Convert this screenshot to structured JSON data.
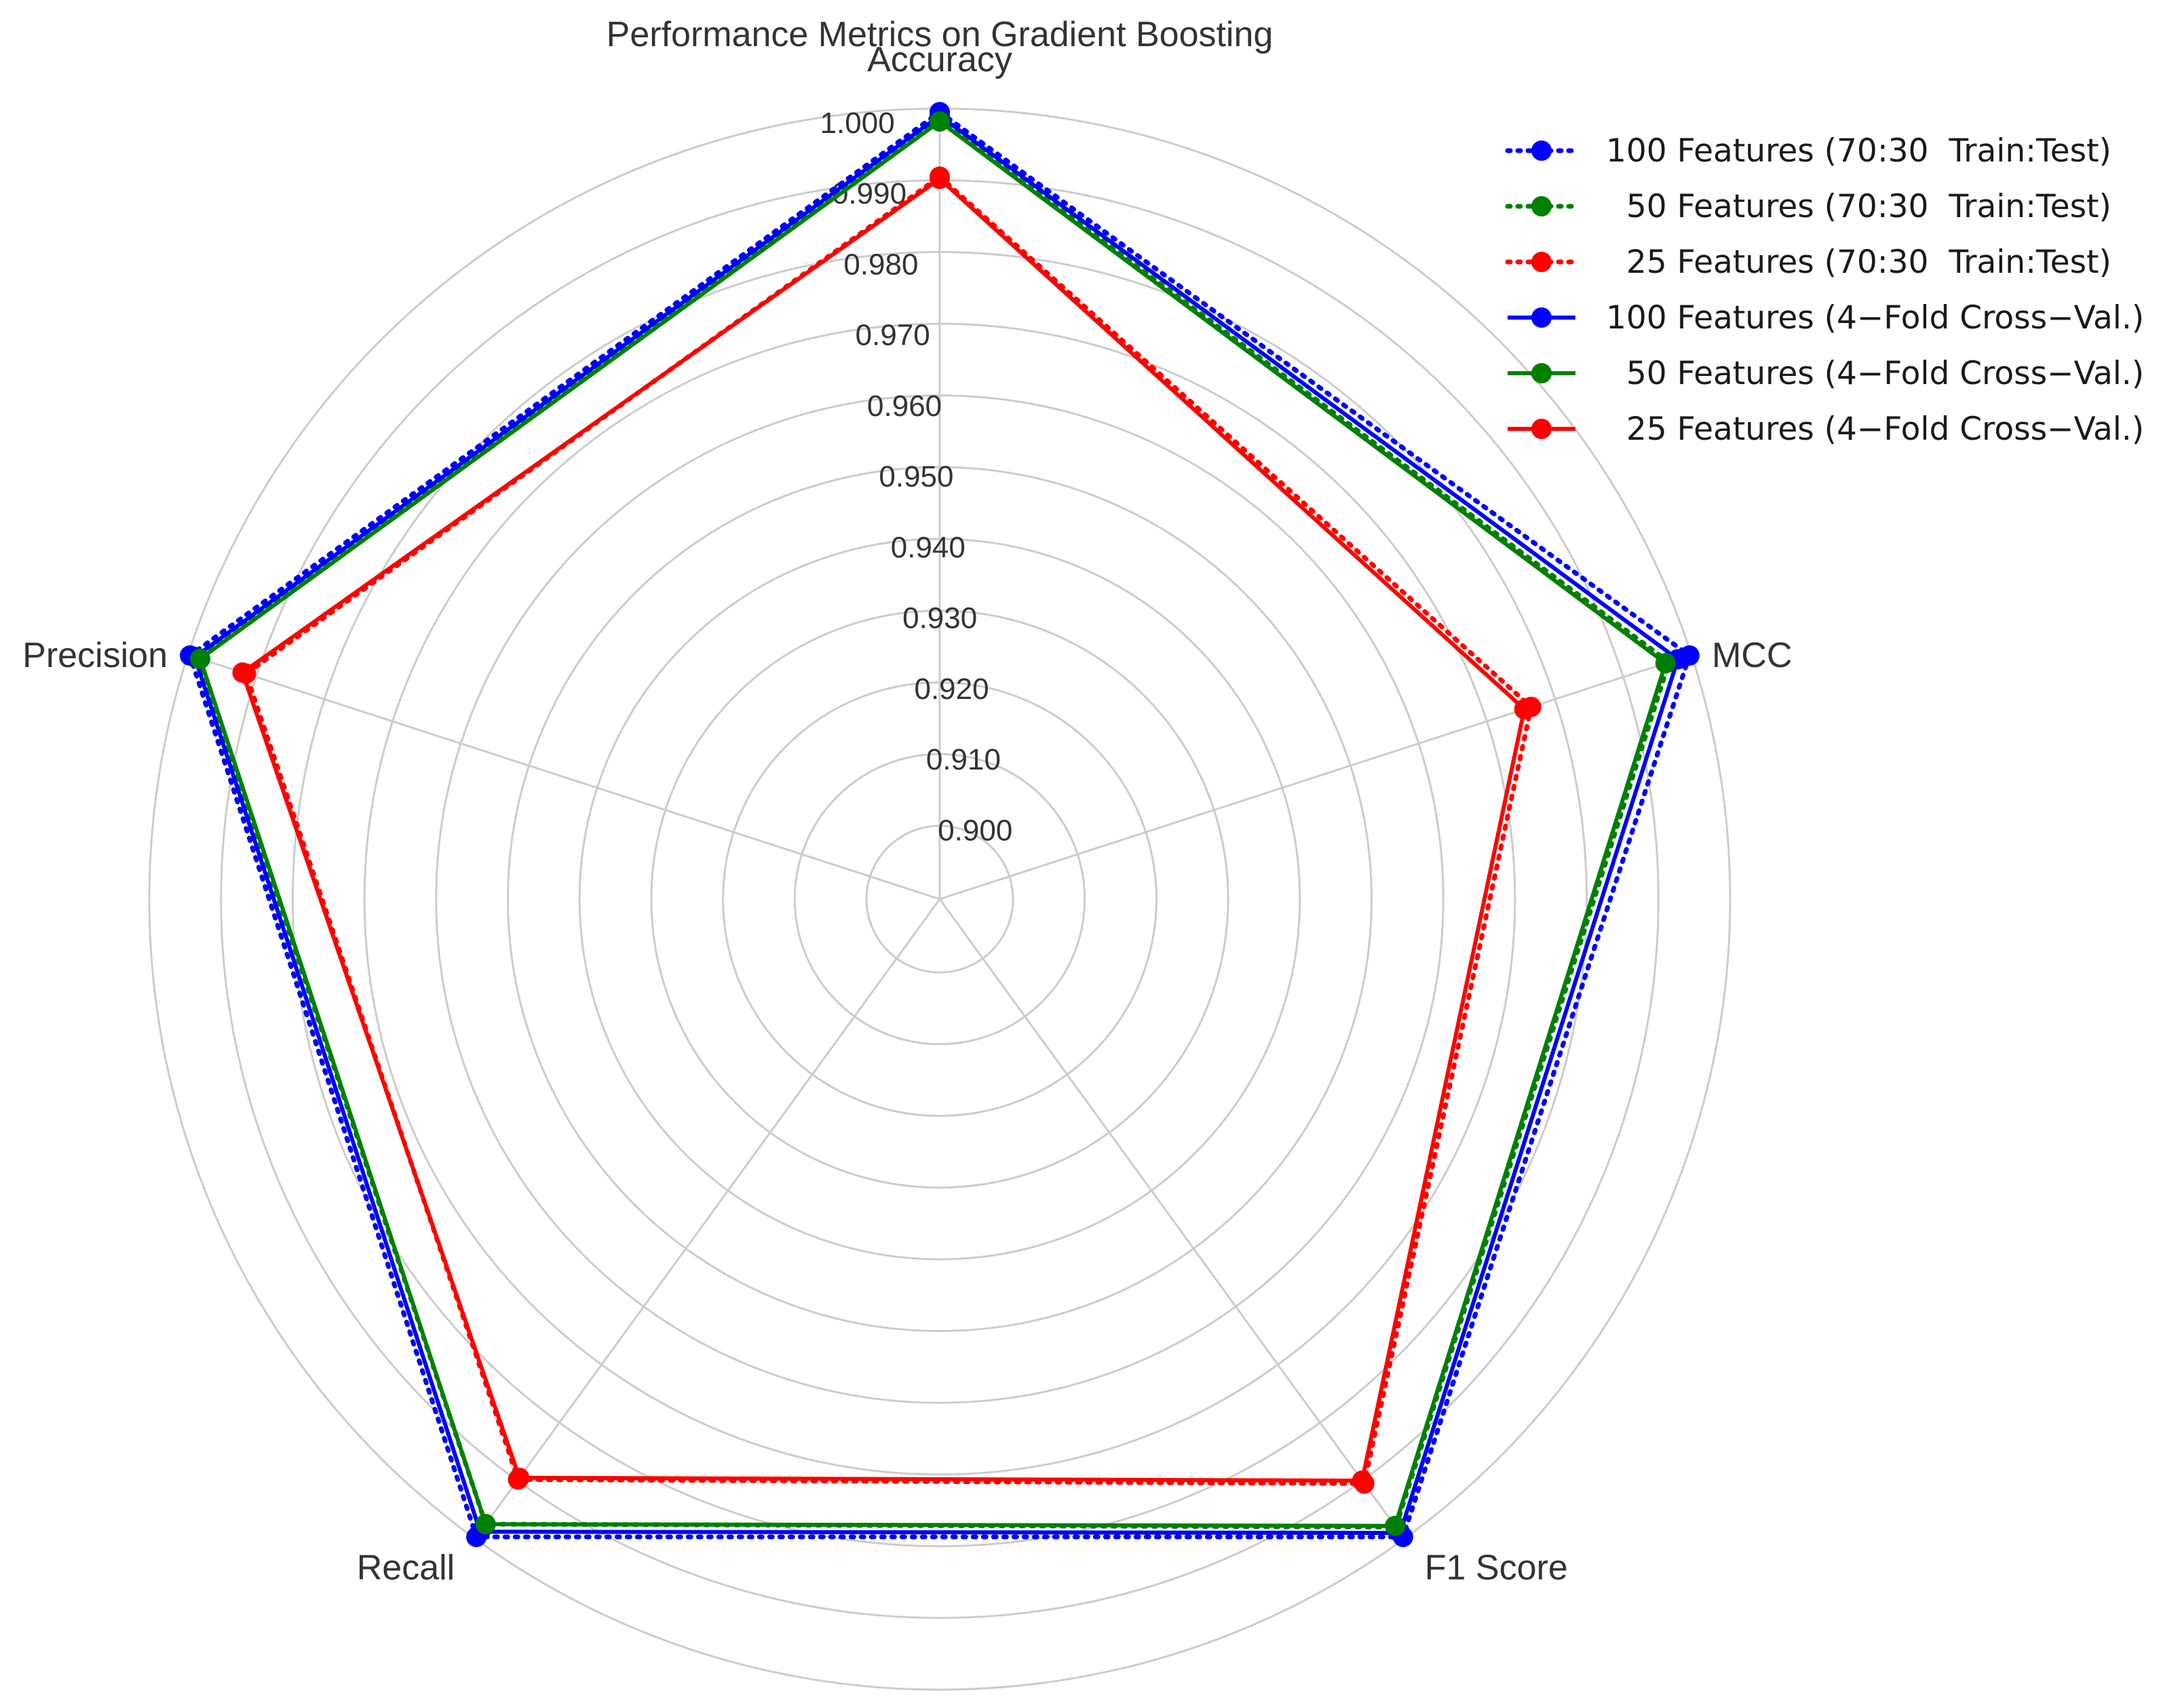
{
  "chart_data": {
    "type": "radar",
    "title": "Performance Metrics on Gradient Boosting",
    "axes": [
      "Accuracy",
      "MCC",
      "F1 Score",
      "Recall",
      "Precision"
    ],
    "rlim": [
      0.9,
      1.0
    ],
    "rticks": [
      "0.900",
      "0.910",
      "0.920",
      "0.930",
      "0.940",
      "0.950",
      "0.960",
      "0.970",
      "0.980",
      "0.990",
      "1.000"
    ],
    "grid": true,
    "legend_position": "top-right",
    "series": [
      {
        "name": "100 Features (70:30  Train:Test)",
        "color": "#0000ff",
        "style": "dotted",
        "values": [
          0.9995,
          0.9997,
          0.9997,
          0.9997,
          0.9997
        ]
      },
      {
        "name": "  50 Features (70:30  Train:Test)",
        "color": "#008000",
        "style": "dotted",
        "values": [
          0.9985,
          0.9967,
          0.998,
          0.9975,
          0.9985
        ]
      },
      {
        "name": "  25 Features (70:30  Train:Test)",
        "color": "#ff0000",
        "style": "dotted",
        "values": [
          0.9905,
          0.9765,
          0.9905,
          0.9898,
          0.9915
        ]
      },
      {
        "name": "100 Features (4−Fold Cross−Val.)",
        "color": "#0000ff",
        "style": "solid",
        "values": [
          0.999,
          0.998,
          0.999,
          0.9988,
          0.999
        ]
      },
      {
        "name": "  50 Features (4−Fold Cross−Val.)",
        "color": "#008000",
        "style": "solid",
        "values": [
          0.9982,
          0.9962,
          0.9978,
          0.9975,
          0.9982
        ]
      },
      {
        "name": "  25 Features (4−Fold Cross−Val.)",
        "color": "#ff0000",
        "style": "solid",
        "values": [
          0.9902,
          0.9755,
          0.99,
          0.9895,
          0.992
        ]
      }
    ]
  }
}
